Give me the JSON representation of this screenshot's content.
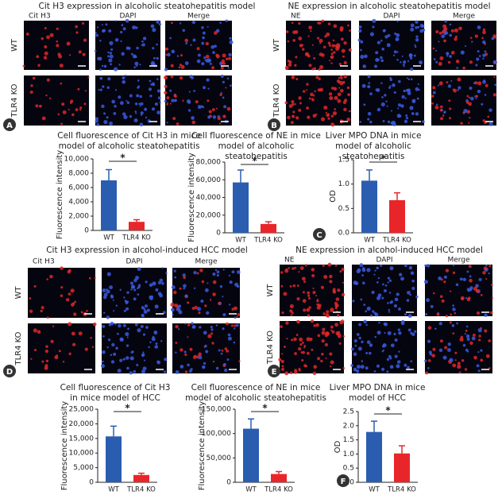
{
  "panels": [
    {
      "letter": "A",
      "title": "Cit H3 expression in alcoholic steatohepatitis model",
      "columns": [
        "Cit H3",
        "DAPI",
        "Merge"
      ],
      "rows": [
        "WT",
        "TLR4 KO"
      ]
    },
    {
      "letter": "B",
      "title": "NE expression in alcoholic steatohepatitis model",
      "columns": [
        "NE",
        "DAPI",
        "Merge"
      ],
      "rows": [
        "WT",
        "TLR4 KO"
      ]
    },
    {
      "letter": "D",
      "title": "Cit H3 expression in alcohol-induced HCC model",
      "columns": [
        "Cit H3",
        "DAPI",
        "Merge"
      ],
      "rows": [
        "WT",
        "TLR4 KO"
      ]
    },
    {
      "letter": "E",
      "title": "NE expression in alcohol-induced HCC model",
      "columns": [
        "NE",
        "DAPI",
        "Merge"
      ],
      "rows": [
        "WT",
        "TLR4 KO"
      ]
    }
  ],
  "chart_data": [
    {
      "type": "bar",
      "title": "Cell fluorescence of Cit H3 in mice model of alcoholic steatohepatitis",
      "y_label": "Fluorescence intensity",
      "categories": [
        "WT",
        "TLR4 KO"
      ],
      "values": [
        7000,
        1200
      ],
      "error": [
        1500,
        300
      ],
      "colors": [
        "#2a5db0",
        "#e8262a"
      ],
      "ylim": [
        0,
        10000
      ],
      "yticks": [
        0,
        {
          "value": 2000,
          "label": "2,000"
        },
        {
          "value": 4000,
          "label": "4,000"
        },
        {
          "value": 6000,
          "label": "6,000"
        },
        {
          "value": 8000,
          "label": "8,000"
        },
        {
          "value": 10000,
          "label": "10,000"
        }
      ],
      "annotation": "*"
    },
    {
      "type": "bar",
      "title": "Cell fluorescence of NE in mice model of alcoholic steatohepatitis",
      "y_label": "Fluorescence intensity",
      "categories": [
        "WT",
        "TLR4 KO"
      ],
      "values": [
        57000,
        10000
      ],
      "error": [
        14000,
        2500
      ],
      "colors": [
        "#2a5db0",
        "#e8262a"
      ],
      "ylim": [
        0,
        80000
      ],
      "yticks": [
        0,
        {
          "value": 20000,
          "label": "20,000"
        },
        {
          "value": 40000,
          "label": "40,000"
        },
        {
          "value": 60000,
          "label": "60,000"
        },
        {
          "value": 80000,
          "label": "80,000"
        }
      ],
      "annotation": "*"
    },
    {
      "type": "bar",
      "title": "Liver MPO DNA in mice model of alcoholic steatohepatitis",
      "y_label": "OD",
      "categories": [
        "WT",
        "TLR4 KO"
      ],
      "values": [
        1.07,
        0.67
      ],
      "error": [
        0.22,
        0.15
      ],
      "colors": [
        "#2a5db0",
        "#e8262a"
      ],
      "ylim": [
        0,
        1.5
      ],
      "yticks": [
        {
          "value": 0,
          "label": "0.0"
        },
        0.5,
        {
          "value": 1,
          "label": "1.0"
        },
        1.5
      ],
      "annotation": "*",
      "panel_label": "C"
    },
    {
      "type": "bar",
      "title": "Cell fluorescence of Cit H3 in mice model of HCC",
      "y_label": "Fluorescence intensity",
      "categories": [
        "WT",
        "TLR4 KO"
      ],
      "values": [
        15700,
        2500
      ],
      "error": [
        3500,
        600
      ],
      "colors": [
        "#2a5db0",
        "#e8262a"
      ],
      "ylim": [
        0,
        25000
      ],
      "yticks": [
        0,
        {
          "value": 5000,
          "label": "5,000"
        },
        {
          "value": 10000,
          "label": "10,000"
        },
        {
          "value": 15000,
          "label": "15,000"
        },
        {
          "value": 20000,
          "label": "20,000"
        },
        {
          "value": 25000,
          "label": "25,000"
        }
      ],
      "annotation": "*"
    },
    {
      "type": "bar",
      "title": "Cell fluorescence of NE in mice model of alcoholic steatohepatitis",
      "y_label": "Fluorescence intensity",
      "categories": [
        "WT",
        "TLR4 KO"
      ],
      "values": [
        110000,
        17000
      ],
      "error": [
        20000,
        5000
      ],
      "colors": [
        "#2a5db0",
        "#e8262a"
      ],
      "ylim": [
        0,
        150000
      ],
      "yticks": [
        0,
        {
          "value": 50000,
          "label": "50,000"
        },
        {
          "value": 100000,
          "label": "100,000"
        },
        {
          "value": 150000,
          "label": "150,000"
        }
      ],
      "annotation": "*"
    },
    {
      "type": "bar",
      "title": "Liver MPO DNA in mice model of HCC",
      "y_label": "OD",
      "categories": [
        "WT",
        "TLR4 KO"
      ],
      "values": [
        1.78,
        1.02
      ],
      "error": [
        0.38,
        0.27
      ],
      "colors": [
        "#2a5db0",
        "#e8262a"
      ],
      "ylim": [
        0,
        2.5
      ],
      "yticks": [
        {
          "value": 0,
          "label": "0.0"
        },
        0.5,
        {
          "value": 1,
          "label": "1.0"
        },
        1.5,
        {
          "value": 2,
          "label": "2.0"
        },
        2.5
      ],
      "annotation": "*",
      "panel_label": "F"
    }
  ]
}
